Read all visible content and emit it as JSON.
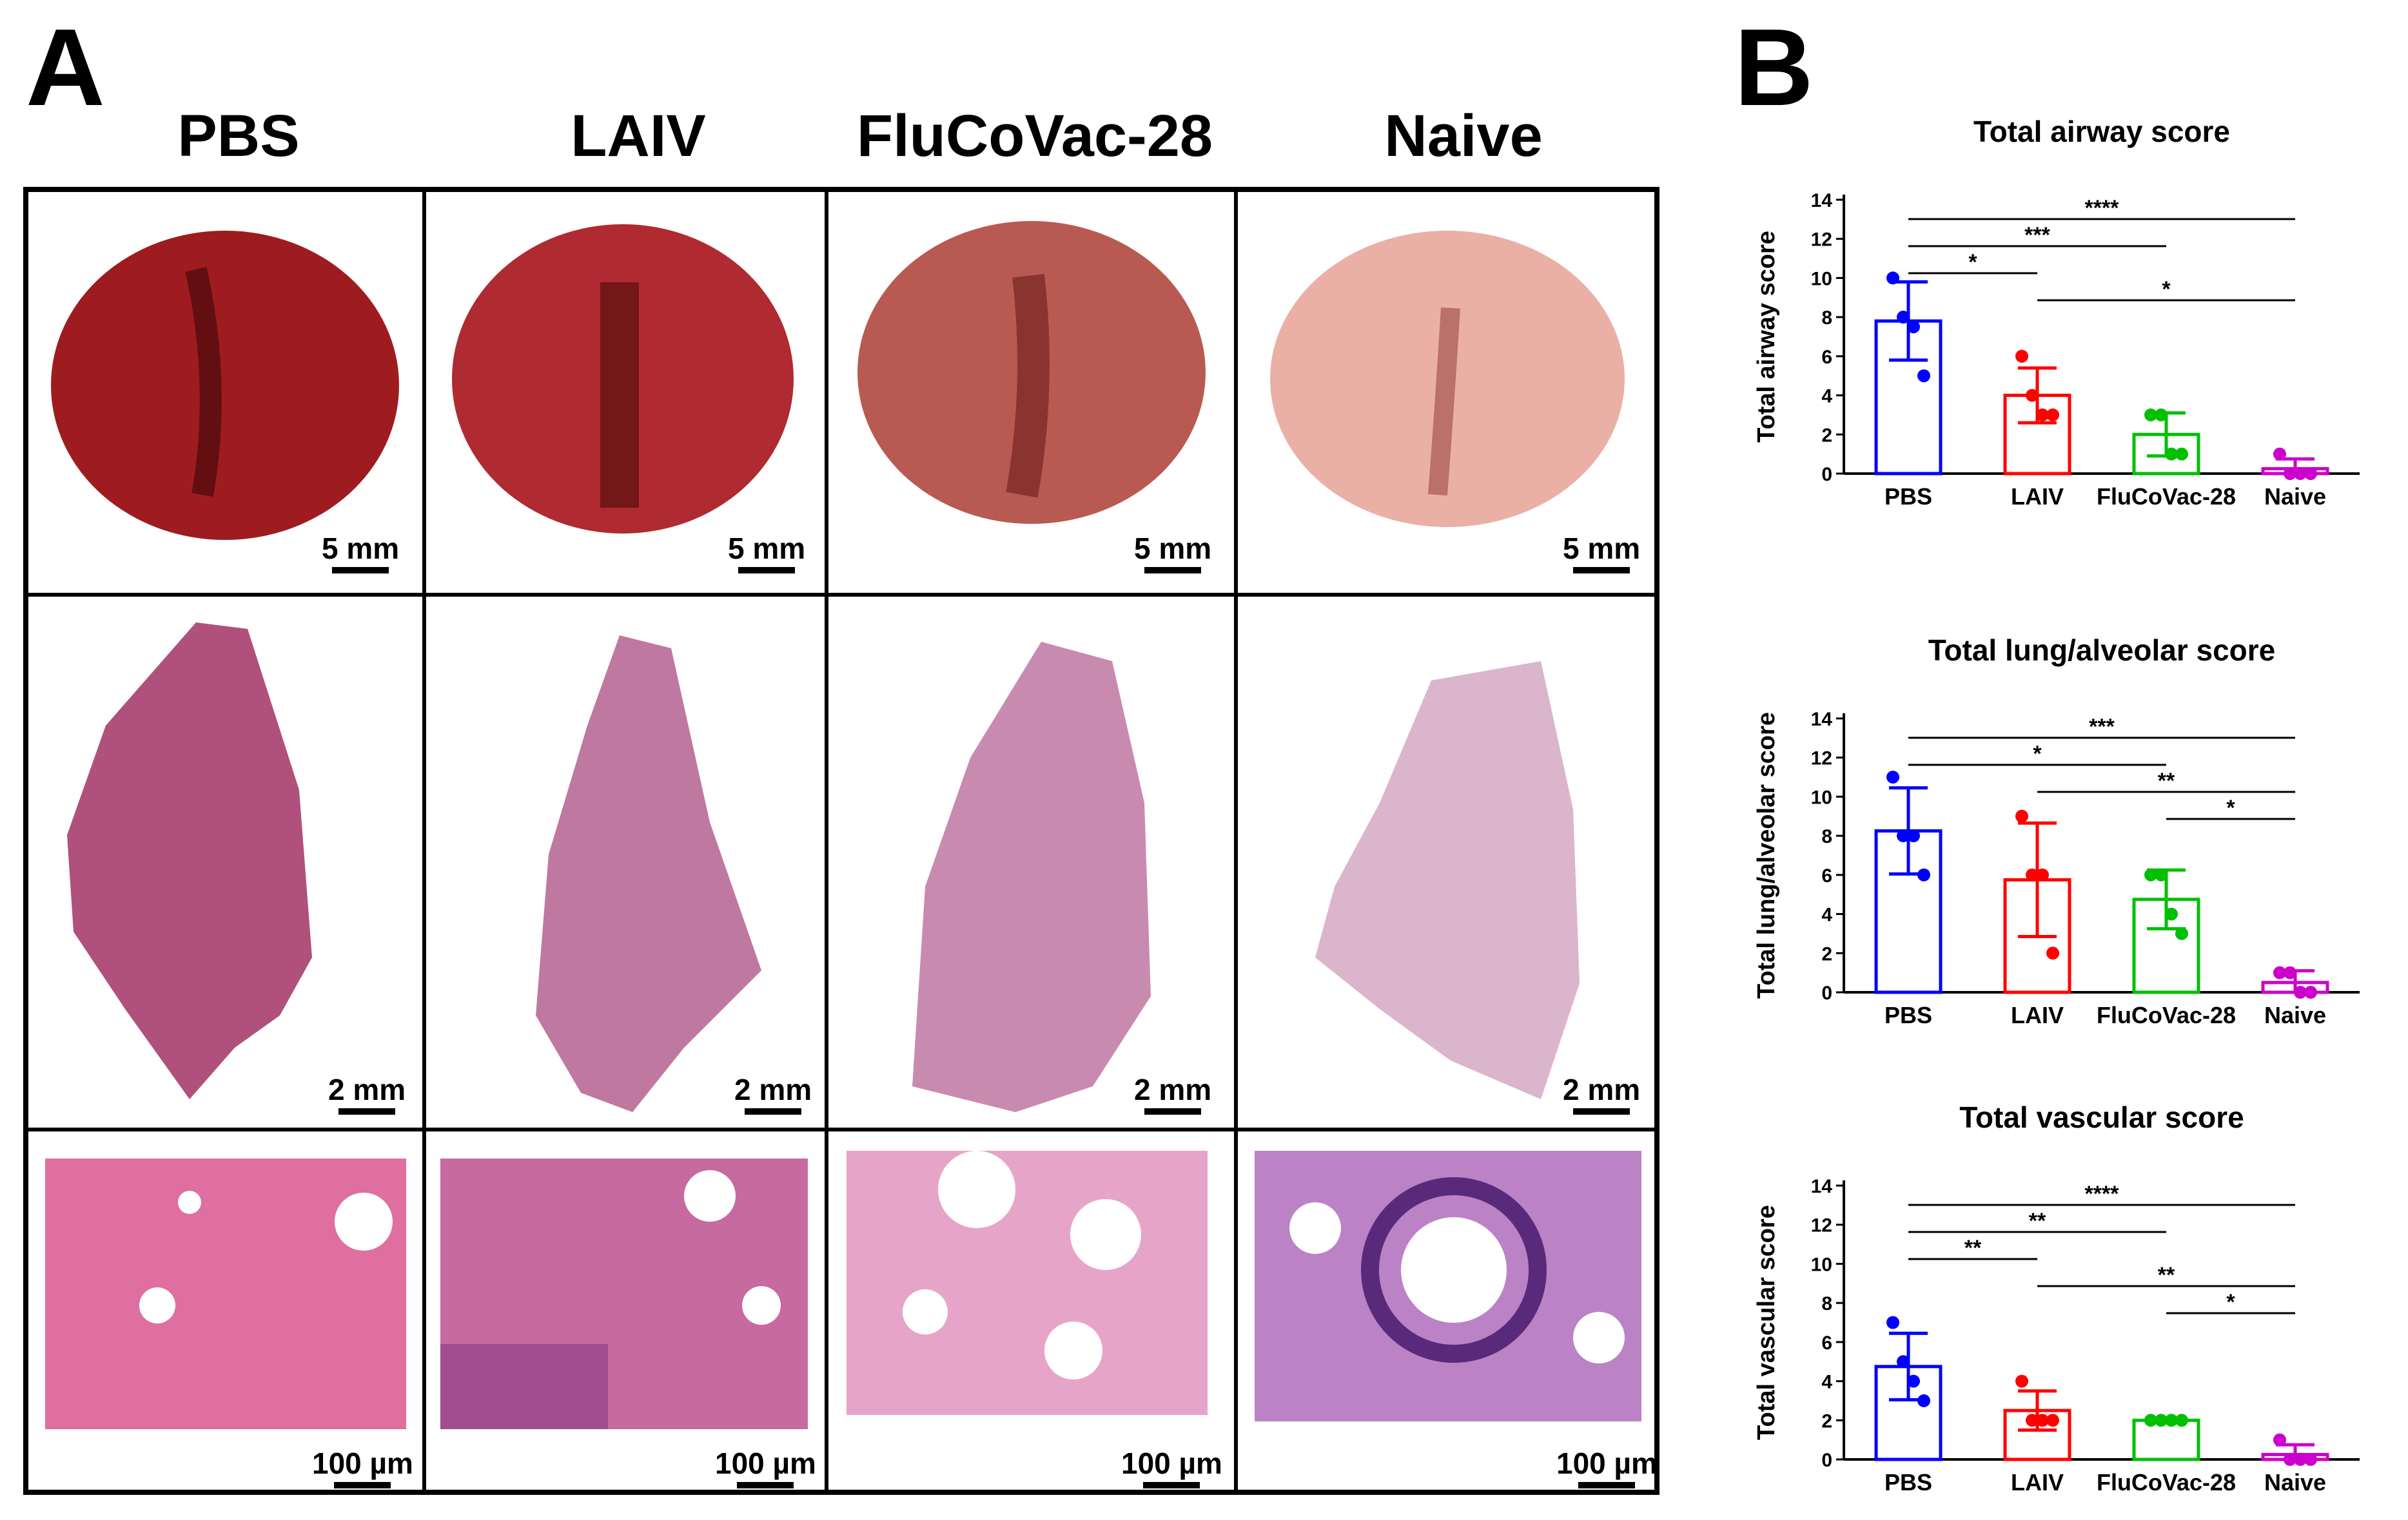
{
  "panel_a": {
    "letter": "A",
    "columns": [
      "PBS",
      "LAIV",
      "FluCoVac-28",
      "Naive"
    ],
    "scalebars": {
      "gross": "5 mm",
      "section": "2 mm",
      "micro": "100 µm"
    },
    "colors": {
      "gross": [
        "#9e1c1f",
        "#b02a31",
        "#b85a52",
        "#eab0a6"
      ],
      "section": [
        "#b0507c",
        "#bf78a0",
        "#c98ab0",
        "#dab5cc"
      ],
      "micro": [
        "#de6fa0",
        "#c66aa0",
        "#e6a5c8",
        "#bb82c6"
      ]
    }
  },
  "panel_b": {
    "letter": "B"
  },
  "chart_data": [
    {
      "type": "bar",
      "title": "Total airway score",
      "ylabel": "Total airway score",
      "categories": [
        "PBS",
        "LAIV",
        "FluCoVac-28",
        "Naive"
      ],
      "colors": [
        "#0000ff",
        "#ff0000",
        "#00c000",
        "#cc00cc"
      ],
      "values": [
        7.8,
        4.0,
        2.0,
        0.25
      ],
      "error": [
        2.0,
        1.4,
        1.1,
        0.5
      ],
      "points": [
        [
          10,
          8,
          7.5,
          5
        ],
        [
          6,
          4,
          3,
          3
        ],
        [
          3,
          3,
          1,
          1
        ],
        [
          1,
          0,
          0,
          0
        ]
      ],
      "ylim": [
        0,
        14
      ],
      "yticks": [
        0,
        2,
        4,
        6,
        8,
        10,
        12,
        14
      ],
      "significance": [
        {
          "from": 0,
          "to": 3,
          "label": "****"
        },
        {
          "from": 0,
          "to": 2,
          "label": "***"
        },
        {
          "from": 0,
          "to": 1,
          "label": "*"
        },
        {
          "from": 1,
          "to": 3,
          "label": "*"
        }
      ]
    },
    {
      "type": "bar",
      "title": "Total lung/alveolar score",
      "ylabel": "Total lung/alveolar score",
      "categories": [
        "PBS",
        "LAIV",
        "FluCoVac-28",
        "Naive"
      ],
      "colors": [
        "#0000ff",
        "#ff0000",
        "#00c000",
        "#cc00cc"
      ],
      "values": [
        8.25,
        5.75,
        4.75,
        0.5
      ],
      "error": [
        2.2,
        2.9,
        1.5,
        0.6
      ],
      "points": [
        [
          11,
          8,
          8,
          6
        ],
        [
          9,
          6,
          6,
          2
        ],
        [
          6,
          6,
          4,
          3
        ],
        [
          1,
          1,
          0,
          0
        ]
      ],
      "ylim": [
        0,
        14
      ],
      "yticks": [
        0,
        2,
        4,
        6,
        8,
        10,
        12,
        14
      ],
      "significance": [
        {
          "from": 0,
          "to": 3,
          "label": "***"
        },
        {
          "from": 0,
          "to": 2,
          "label": "*"
        },
        {
          "from": 1,
          "to": 3,
          "label": "**"
        },
        {
          "from": 2,
          "to": 3,
          "label": "*"
        }
      ]
    },
    {
      "type": "bar",
      "title": "Total vascular score",
      "ylabel": "Total vascular score",
      "categories": [
        "PBS",
        "LAIV",
        "FluCoVac-28",
        "Naive"
      ],
      "colors": [
        "#0000ff",
        "#ff0000",
        "#00c000",
        "#cc00cc"
      ],
      "values": [
        4.75,
        2.5,
        2.0,
        0.25
      ],
      "error": [
        1.7,
        1.0,
        0.0,
        0.5
      ],
      "points": [
        [
          7,
          5,
          4,
          3
        ],
        [
          4,
          2,
          2,
          2
        ],
        [
          2,
          2,
          2,
          2
        ],
        [
          1,
          0,
          0,
          0
        ]
      ],
      "ylim": [
        0,
        14
      ],
      "yticks": [
        0,
        2,
        4,
        6,
        8,
        10,
        12,
        14
      ],
      "significance": [
        {
          "from": 0,
          "to": 3,
          "label": "****"
        },
        {
          "from": 0,
          "to": 2,
          "label": "**"
        },
        {
          "from": 0,
          "to": 1,
          "label": "**"
        },
        {
          "from": 1,
          "to": 3,
          "label": "**"
        },
        {
          "from": 2,
          "to": 3,
          "label": "*"
        }
      ]
    }
  ]
}
